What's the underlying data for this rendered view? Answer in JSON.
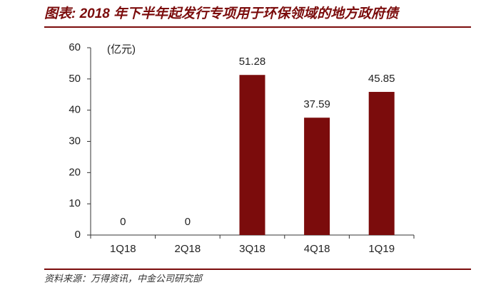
{
  "chart_data": {
    "type": "bar",
    "title": "图表: 2018 年下半年起发行专项用于环保领域的地方政府债",
    "unit_label": "(亿元)",
    "source": "资料来源：万得资讯，中金公司研究部",
    "categories": [
      "1Q18",
      "2Q18",
      "3Q18",
      "4Q18",
      "1Q19"
    ],
    "values": [
      0,
      0,
      51.28,
      37.59,
      45.85
    ],
    "color": "#7b0c0c",
    "ylim": [
      0,
      60
    ],
    "yticks": [
      0,
      10,
      20,
      30,
      40,
      50,
      60
    ],
    "grid": false
  }
}
